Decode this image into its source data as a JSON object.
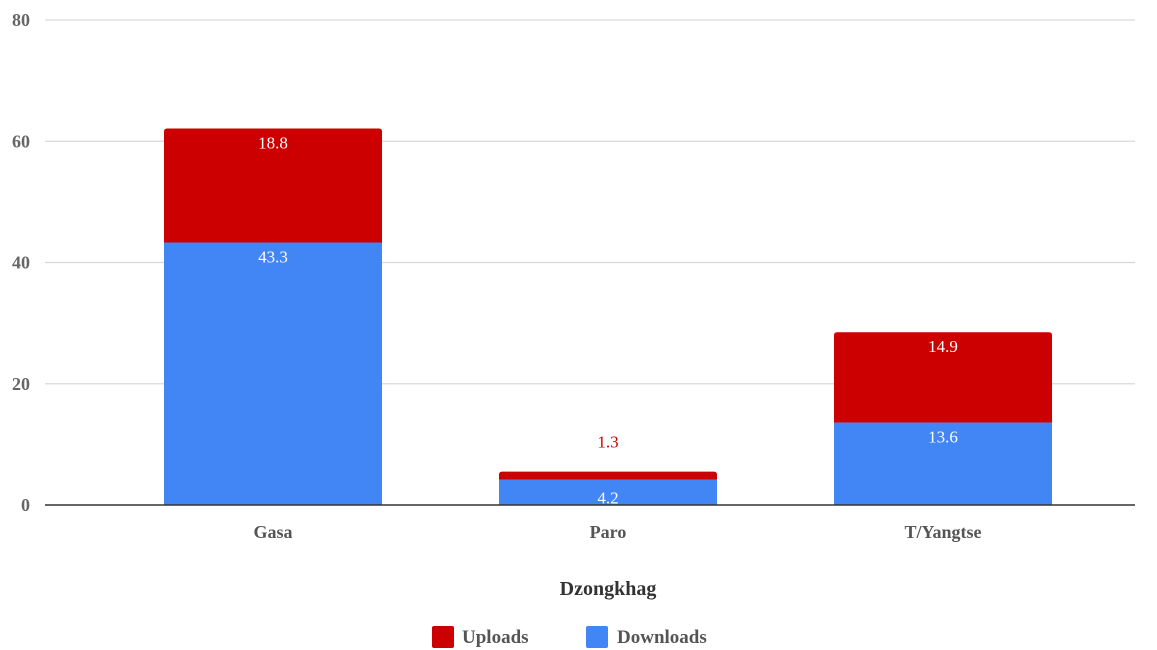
{
  "chart_data": {
    "type": "bar",
    "stacked": true,
    "title": "",
    "xlabel": "Dzongkhag",
    "ylabel": "",
    "categories": [
      "Gasa",
      "Paro",
      "T/Yangtse"
    ],
    "series": [
      {
        "name": "Downloads",
        "values": [
          43.3,
          4.2,
          13.6
        ],
        "labels": [
          "43.3",
          "4.2",
          "13.6"
        ],
        "color": "#4285f4"
      },
      {
        "name": "Uploads",
        "values": [
          18.8,
          1.3,
          14.9
        ],
        "labels": [
          "18.8",
          "1.3",
          "14.9"
        ],
        "color": "#cc0000"
      }
    ],
    "ylim": [
      0,
      80
    ],
    "yticks": [
      0,
      20,
      40,
      60,
      80
    ],
    "ytick_labels": [
      "0",
      "20",
      "40",
      "60",
      "80"
    ],
    "grid": true,
    "legend_position": "bottom",
    "legend_order": [
      "Uploads",
      "Downloads"
    ]
  }
}
